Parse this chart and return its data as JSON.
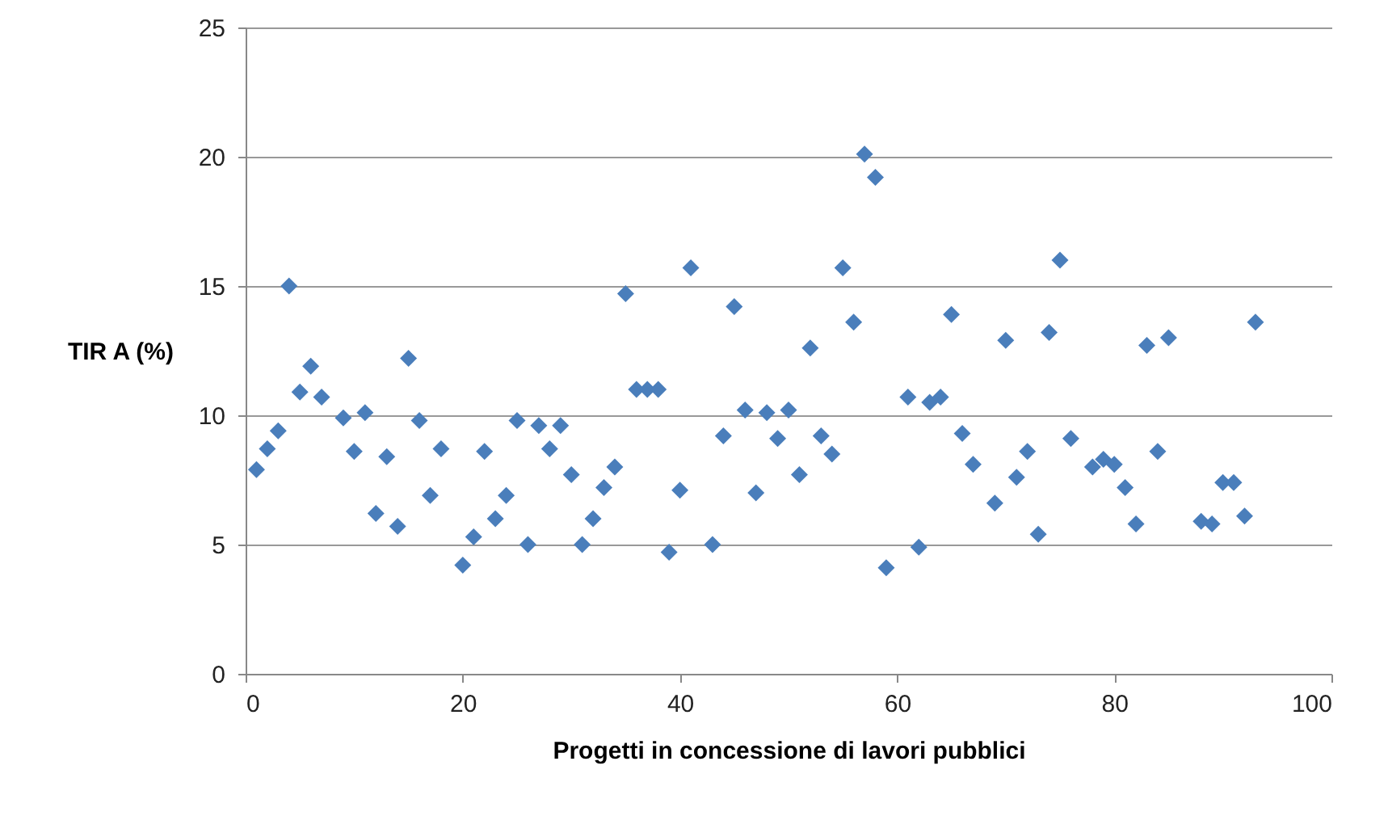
{
  "chart_data": {
    "type": "scatter",
    "xlabel": "Progetti in concessione  di lavori pubblici",
    "ylabel": "TIR A (%)",
    "x": [
      1,
      2,
      3,
      4,
      5,
      6,
      7,
      9,
      10,
      11,
      12,
      13,
      14,
      15,
      16,
      17,
      18,
      20,
      21,
      22,
      23,
      24,
      25,
      26,
      27,
      28,
      29,
      30,
      31,
      32,
      33,
      34,
      35,
      36,
      37,
      38,
      39,
      40,
      41,
      43,
      44,
      45,
      46,
      47,
      48,
      49,
      50,
      51,
      52,
      53,
      54,
      55,
      56,
      57,
      58,
      59,
      61,
      62,
      63,
      64,
      65,
      66,
      67,
      69,
      70,
      71,
      72,
      73,
      74,
      75,
      76,
      78,
      79,
      80,
      81,
      82,
      83,
      84,
      85,
      88,
      89,
      90,
      91,
      92,
      93
    ],
    "series": [
      {
        "color": "#4a7ebb",
        "values": [
          7.9,
          8.7,
          9.4,
          15.0,
          10.9,
          11.9,
          10.7,
          9.9,
          8.6,
          10.1,
          6.2,
          8.4,
          5.7,
          12.2,
          9.8,
          6.9,
          8.7,
          4.2,
          5.3,
          8.6,
          6.0,
          6.9,
          9.8,
          5.0,
          9.6,
          8.7,
          9.6,
          7.7,
          5.0,
          6.0,
          7.2,
          8.0,
          14.7,
          11.0,
          11.0,
          11.0,
          4.7,
          7.1,
          15.7,
          5.0,
          9.2,
          14.2,
          10.2,
          7.0,
          10.1,
          9.1,
          10.2,
          7.7,
          12.6,
          9.2,
          8.5,
          15.7,
          13.6,
          20.1,
          19.2,
          4.1,
          10.7,
          4.9,
          10.5,
          10.7,
          13.9,
          9.3,
          8.1,
          6.6,
          12.9,
          7.6,
          8.6,
          5.4,
          13.2,
          16.0,
          9.1,
          8.0,
          8.3,
          8.1,
          7.2,
          5.8,
          12.7,
          8.6,
          13.0,
          5.9,
          5.8,
          7.4,
          7.4,
          6.1,
          13.6
        ]
      }
    ],
    "xlim": [
      0,
      100
    ],
    "xticks": [
      0,
      20,
      40,
      60,
      80,
      100
    ],
    "ylim": [
      0,
      25
    ],
    "yticks": [
      0,
      5,
      10,
      15,
      20,
      25
    ],
    "grid": "y",
    "marker": "diamond",
    "legend": false
  }
}
